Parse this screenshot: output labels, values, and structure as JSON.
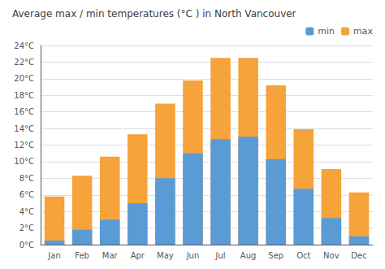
{
  "chart_data": {
    "type": "bar",
    "title": "Average max / min temperatures (°C ) in North Vancouver",
    "categories": [
      "Jan",
      "Feb",
      "Mar",
      "Apr",
      "May",
      "Jun",
      "Jul",
      "Aug",
      "Sep",
      "Oct",
      "Nov",
      "Dec"
    ],
    "series": [
      {
        "name": "max",
        "color": "#f5a33a",
        "values": [
          5.8,
          8.3,
          10.6,
          13.3,
          17.0,
          19.8,
          22.5,
          22.5,
          19.2,
          13.9,
          9.1,
          6.3
        ]
      },
      {
        "name": "min",
        "color": "#5b9bd5",
        "values": [
          0.5,
          1.8,
          3.0,
          5.0,
          8.0,
          11.0,
          12.7,
          13.0,
          10.3,
          6.7,
          3.2,
          1.0
        ]
      }
    ],
    "ylim": [
      0,
      24
    ],
    "yticks": [
      {
        "value": 0,
        "label": "0°C"
      },
      {
        "value": 2,
        "label": "2°C"
      },
      {
        "value": 4,
        "label": "4°C"
      },
      {
        "value": 6,
        "label": "6°C"
      },
      {
        "value": 8,
        "label": "8°C"
      },
      {
        "value": 10,
        "label": "10°C"
      },
      {
        "value": 12,
        "label": "12°C"
      },
      {
        "value": 14,
        "label": "14°C"
      },
      {
        "value": 16,
        "label": "16°C"
      },
      {
        "value": 18,
        "label": "18°C"
      },
      {
        "value": 20,
        "label": "20°C"
      },
      {
        "value": 22,
        "label": "22°C"
      },
      {
        "value": 24,
        "label": "24°C"
      }
    ],
    "grid": true,
    "legend": "upper right"
  }
}
